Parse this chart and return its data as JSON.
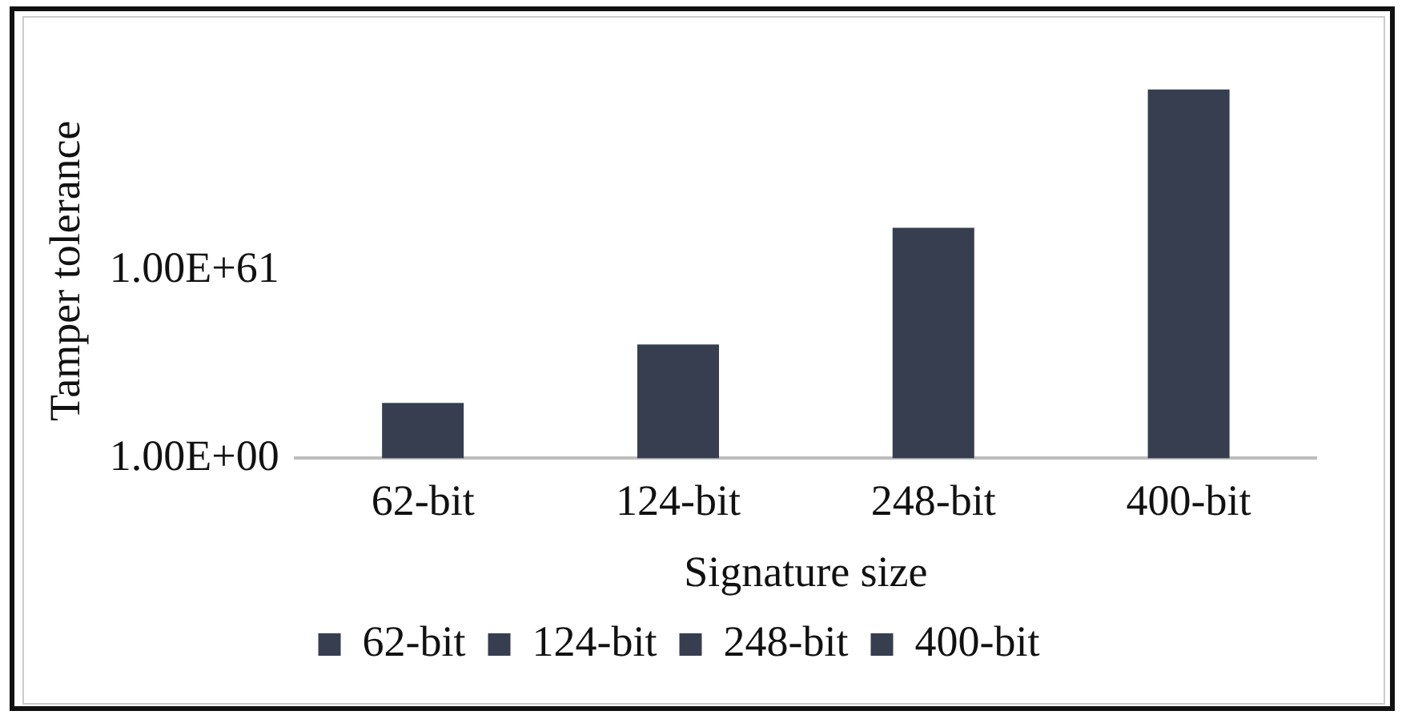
{
  "chart_data": {
    "type": "bar",
    "xlabel": "Signature size",
    "ylabel": "Tamper tolerance",
    "log": true,
    "grid": false,
    "legend": "bottom",
    "categories": [
      "62-bit",
      "124-bit",
      "248-bit",
      "400-bit"
    ],
    "ylim": [
      1,
      1e+122
    ],
    "yticks": [
      {
        "value": 1,
        "label": "1.00E+00"
      },
      {
        "value": 1e+61,
        "label": "1.00E+61"
      }
    ],
    "series": [
      {
        "name": "62-bit",
        "color": "#363e4f",
        "values": [
          1e+18,
          null,
          null,
          null
        ]
      },
      {
        "name": "124-bit",
        "color": "#363e4f",
        "values": [
          null,
          1e+37,
          null,
          null
        ]
      },
      {
        "name": "248-bit",
        "color": "#363e4f",
        "values": [
          null,
          null,
          1e+75,
          null
        ]
      },
      {
        "name": "400-bit",
        "color": "#363e4f",
        "values": [
          null,
          null,
          null,
          1e+120
        ]
      }
    ]
  }
}
